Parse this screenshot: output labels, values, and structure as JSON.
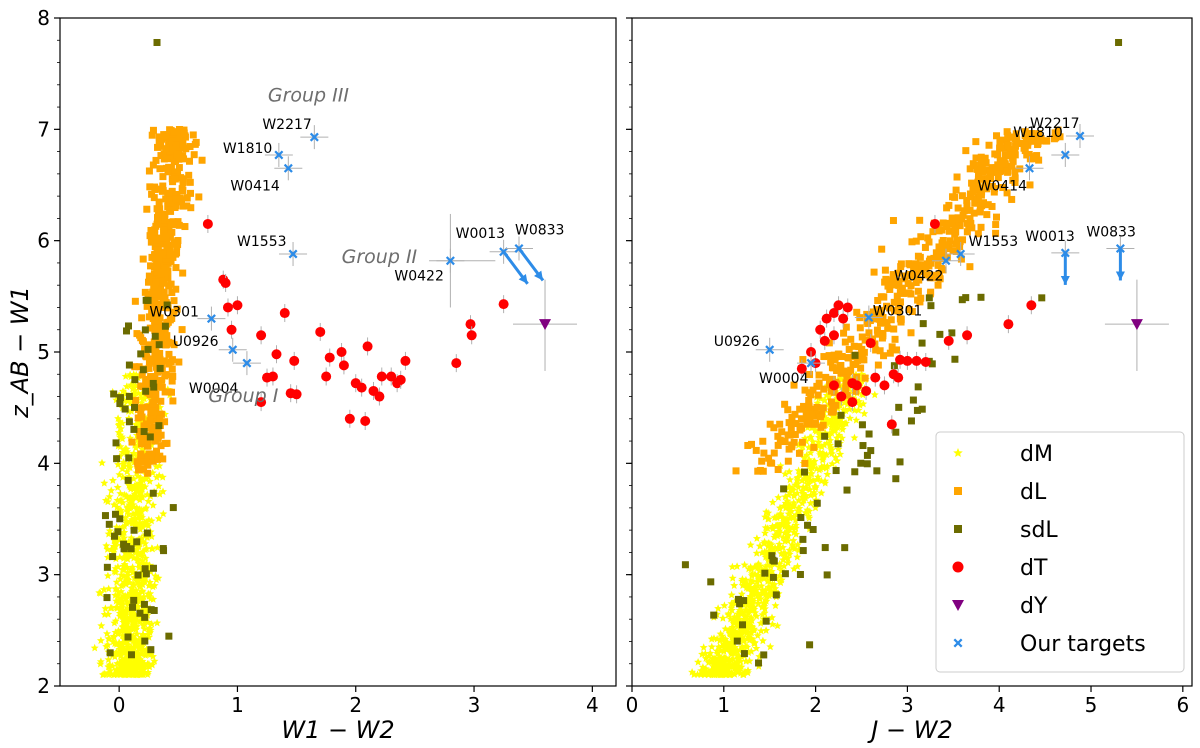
{
  "colors": {
    "dM": "#ffff00",
    "dL": "#ffa500",
    "sdL": "#6b6b00",
    "dT": "#ff0000",
    "dY": "#800080",
    "targets": "#2d8ce8",
    "errorbar": "#b0b0b0",
    "group_label": "#6e6e6e"
  },
  "chart_data": [
    {
      "type": "scatter",
      "panel": "left",
      "xlabel": "W1 − W2",
      "ylabel": "z_AB − W1",
      "xlim": [
        -0.5,
        4.2
      ],
      "ylim": [
        2.0,
        8.0
      ],
      "xticks": [
        0,
        1,
        2,
        3,
        4
      ],
      "yticks": [
        2,
        3,
        4,
        5,
        6,
        7,
        8
      ],
      "group_labels": [
        {
          "text": "Group III",
          "x": 1.6,
          "y": 7.25
        },
        {
          "text": "Group II",
          "x": 2.2,
          "y": 5.8
        },
        {
          "text": "Group I",
          "x": 1.05,
          "y": 4.55
        }
      ],
      "series": [
        {
          "name": "dT",
          "points": [
            [
              0.75,
              6.15
            ],
            [
              0.88,
              5.65
            ],
            [
              0.9,
              5.62
            ],
            [
              0.92,
              5.4
            ],
            [
              1.0,
              5.42
            ],
            [
              0.95,
              5.2
            ],
            [
              1.2,
              5.15
            ],
            [
              1.4,
              5.35
            ],
            [
              1.33,
              4.98
            ],
            [
              1.48,
              4.92
            ],
            [
              1.7,
              5.18
            ],
            [
              1.78,
              4.95
            ],
            [
              1.75,
              4.78
            ],
            [
              1.9,
              4.88
            ],
            [
              1.88,
              5.0
            ],
            [
              2.1,
              5.05
            ],
            [
              2.0,
              4.72
            ],
            [
              1.95,
              4.4
            ],
            [
              2.08,
              4.38
            ],
            [
              2.22,
              4.78
            ],
            [
              2.3,
              4.78
            ],
            [
              2.35,
              4.72
            ],
            [
              2.42,
              4.92
            ],
            [
              1.25,
              4.77
            ],
            [
              1.3,
              4.78
            ],
            [
              1.45,
              4.63
            ],
            [
              1.5,
              4.62
            ],
            [
              1.2,
              4.55
            ],
            [
              2.15,
              4.65
            ],
            [
              2.05,
              4.68
            ],
            [
              2.38,
              4.75
            ],
            [
              2.2,
              4.6
            ],
            [
              2.85,
              4.9
            ],
            [
              3.25,
              5.43
            ],
            [
              2.97,
              5.25
            ],
            [
              2.98,
              5.15
            ]
          ]
        },
        {
          "name": "dY",
          "points": [
            [
              3.6,
              5.25
            ]
          ]
        },
        {
          "name": "Our targets",
          "points": [
            {
              "label": "W2217",
              "x": 1.65,
              "y": 6.93
            },
            {
              "label": "W1810",
              "x": 1.35,
              "y": 6.77
            },
            {
              "label": "W0414",
              "x": 1.43,
              "y": 6.65
            },
            {
              "label": "W1553",
              "x": 1.47,
              "y": 5.88
            },
            {
              "label": "W0422",
              "x": 2.8,
              "y": 5.82
            },
            {
              "label": "W0013",
              "x": 3.25,
              "y": 5.9
            },
            {
              "label": "W0833",
              "x": 3.38,
              "y": 5.93
            },
            {
              "label": "W0301",
              "x": 0.78,
              "y": 5.3
            },
            {
              "label": "U0926",
              "x": 0.96,
              "y": 5.02
            },
            {
              "label": "W0004",
              "x": 1.08,
              "y": 4.9
            }
          ]
        }
      ]
    },
    {
      "type": "scatter",
      "panel": "right",
      "xlabel": "J − W2",
      "ylabel": "",
      "xlim": [
        0.0,
        6.1
      ],
      "ylim": [
        2.0,
        8.0
      ],
      "xticks": [
        0,
        1,
        2,
        3,
        4,
        5,
        6
      ],
      "yticks": [
        2,
        3,
        4,
        5,
        6,
        7,
        8
      ],
      "legend": {
        "position": "lower-right",
        "entries": [
          "dM",
          "dL",
          "sdL",
          "dT",
          "dY",
          "Our targets"
        ]
      },
      "series": [
        {
          "name": "dT",
          "points": [
            [
              1.85,
              4.85
            ],
            [
              1.95,
              5.0
            ],
            [
              2.0,
              4.9
            ],
            [
              2.05,
              5.2
            ],
            [
              2.1,
              5.1
            ],
            [
              2.12,
              5.3
            ],
            [
              2.2,
              5.35
            ],
            [
              2.25,
              5.42
            ],
            [
              2.3,
              5.3
            ],
            [
              2.35,
              5.4
            ],
            [
              2.2,
              5.15
            ],
            [
              2.6,
              5.08
            ],
            [
              2.4,
              4.72
            ],
            [
              2.45,
              4.7
            ],
            [
              2.55,
              4.65
            ],
            [
              2.4,
              4.55
            ],
            [
              2.28,
              4.6
            ],
            [
              2.2,
              4.7
            ],
            [
              2.65,
              4.77
            ],
            [
              2.75,
              4.7
            ],
            [
              2.85,
              4.8
            ],
            [
              2.92,
              4.93
            ],
            [
              3.0,
              4.92
            ],
            [
              2.9,
              4.77
            ],
            [
              3.1,
              4.92
            ],
            [
              3.2,
              4.91
            ],
            [
              2.83,
              4.35
            ],
            [
              3.3,
              6.15
            ],
            [
              3.65,
              5.15
            ],
            [
              4.1,
              5.25
            ],
            [
              4.35,
              5.42
            ],
            [
              3.45,
              5.1
            ]
          ]
        },
        {
          "name": "dY",
          "points": [
            [
              5.5,
              5.25
            ]
          ]
        },
        {
          "name": "Our targets",
          "points": [
            {
              "label": "W2217",
              "x": 4.88,
              "y": 6.94
            },
            {
              "label": "W1810",
              "x": 4.72,
              "y": 6.77
            },
            {
              "label": "W0414",
              "x": 4.33,
              "y": 6.65
            },
            {
              "label": "W1553",
              "x": 3.58,
              "y": 5.88
            },
            {
              "label": "W0422",
              "x": 3.42,
              "y": 5.82
            },
            {
              "label": "W0013",
              "x": 4.72,
              "y": 5.89
            },
            {
              "label": "W0833",
              "x": 5.32,
              "y": 5.93
            },
            {
              "label": "W0301",
              "x": 2.58,
              "y": 5.31
            },
            {
              "label": "U0926",
              "x": 1.5,
              "y": 5.02
            },
            {
              "label": "W0004",
              "x": 1.95,
              "y": 4.9
            }
          ]
        }
      ]
    }
  ]
}
